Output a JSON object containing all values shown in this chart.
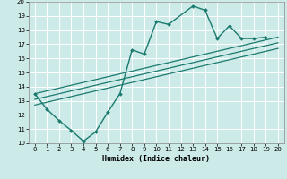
{
  "xlabel": "Humidex (Indice chaleur)",
  "ylabel": "",
  "xlim": [
    -0.5,
    20.5
  ],
  "ylim": [
    10,
    20
  ],
  "xticks": [
    0,
    1,
    2,
    3,
    4,
    5,
    6,
    7,
    8,
    9,
    10,
    11,
    12,
    13,
    14,
    15,
    16,
    17,
    18,
    19,
    20
  ],
  "yticks": [
    10,
    11,
    12,
    13,
    14,
    15,
    16,
    17,
    18,
    19,
    20
  ],
  "bg_color": "#cceae7",
  "line_color": "#1a7a6e",
  "zigzag": {
    "x": [
      0,
      1,
      2,
      3,
      4,
      5,
      6,
      7,
      8,
      9,
      10,
      11,
      13,
      14,
      15,
      16,
      17,
      18,
      19
    ],
    "y": [
      13.5,
      12.4,
      11.6,
      10.9,
      10.15,
      10.8,
      12.2,
      13.5,
      16.6,
      16.3,
      18.6,
      18.4,
      19.7,
      19.4,
      17.4,
      18.3,
      17.4,
      17.4,
      17.5
    ],
    "marker": "D",
    "markersize": 2.0,
    "linewidth": 1.0
  },
  "regression_lines": [
    {
      "x0": 0,
      "y0": 13.5,
      "x1": 20,
      "y1": 17.5,
      "linewidth": 0.9
    },
    {
      "x0": 0,
      "y0": 13.1,
      "x1": 20,
      "y1": 17.1,
      "linewidth": 0.9
    },
    {
      "x0": 0,
      "y0": 12.7,
      "x1": 20,
      "y1": 16.7,
      "linewidth": 0.9
    }
  ]
}
